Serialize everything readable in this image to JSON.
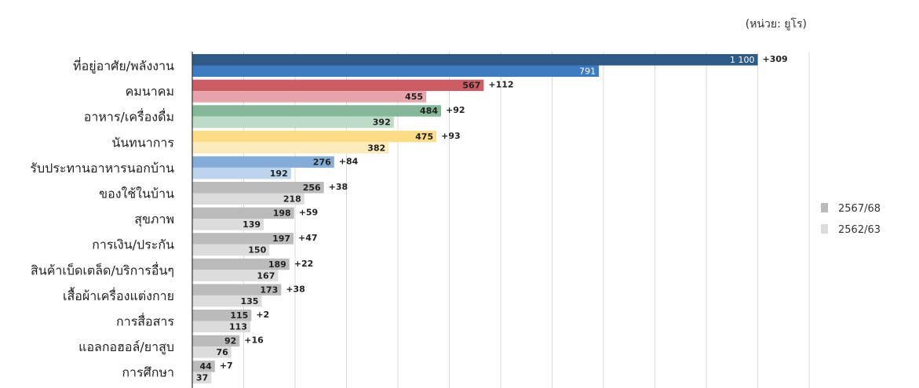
{
  "chart_data": {
    "type": "bar",
    "orientation": "horizontal",
    "unit_label": "(หน่วย: ยูโร)",
    "categories": [
      "ที่อยู่อาศัย/พลังงาน",
      "คมนาคม",
      "อาหาร/เครื่องดื่ม",
      "นันทนาการ",
      "รับประทานอาหารนอกบ้าน",
      "ของใช้ในบ้าน",
      "สุขภาพ",
      "การเงิน/ประกัน",
      "สินค้าเบ็ดเตล็ด/บริการอื่นๆ",
      "เสื้อผ้าเครื่องแต่งกาย",
      "การสื่อสาร",
      "แอลกอฮอล์/ยาสูบ",
      "การศึกษา"
    ],
    "series": [
      {
        "name": "2567/68",
        "values": [
          1100,
          567,
          484,
          475,
          276,
          256,
          198,
          197,
          189,
          173,
          115,
          92,
          44
        ],
        "value_labels": [
          "1 100",
          "567",
          "484",
          "475",
          "276",
          "256",
          "198",
          "197",
          "189",
          "173",
          "115",
          "92",
          "44"
        ]
      },
      {
        "name": "2562/63",
        "values": [
          791,
          455,
          392,
          382,
          192,
          218,
          139,
          150,
          167,
          135,
          113,
          76,
          37
        ],
        "value_labels": [
          "791",
          "455",
          "392",
          "382",
          "192",
          "218",
          "139",
          "150",
          "167",
          "135",
          "113",
          "76",
          "37"
        ]
      }
    ],
    "deltas": [
      "+309",
      "+112",
      "+92",
      "+93",
      "+84",
      "+38",
      "+59",
      "+47",
      "+22",
      "+38",
      "+2",
      "+16",
      "+7"
    ],
    "colors_2567": [
      "#2e5a88",
      "#cc5c63",
      "#84b898",
      "#fcdc84",
      "#84acd8",
      "#bbbbbb",
      "#bbbbbb",
      "#bbbbbb",
      "#bbbbbb",
      "#bbbbbb",
      "#bbbbbb",
      "#bbbbbb",
      "#bbbbbb"
    ],
    "colors_2562": [
      "#3d7cc0",
      "#e8a4ab",
      "#bcdcc8",
      "#fcecbc",
      "#bcd4ec",
      "#dcdcdc",
      "#dcdcdc",
      "#dcdcdc",
      "#dcdcdc",
      "#dcdcdc",
      "#dcdcdc",
      "#dcdcdc",
      "#dcdcdc"
    ],
    "light_label_colors": "#ffffff",
    "legend_colors": [
      "#bbbbbb",
      "#dcdcdc"
    ],
    "legend": [
      "2567/68",
      "2562/63"
    ],
    "legend_position": "right",
    "grid": true,
    "xlim": [
      0,
      1200
    ]
  }
}
